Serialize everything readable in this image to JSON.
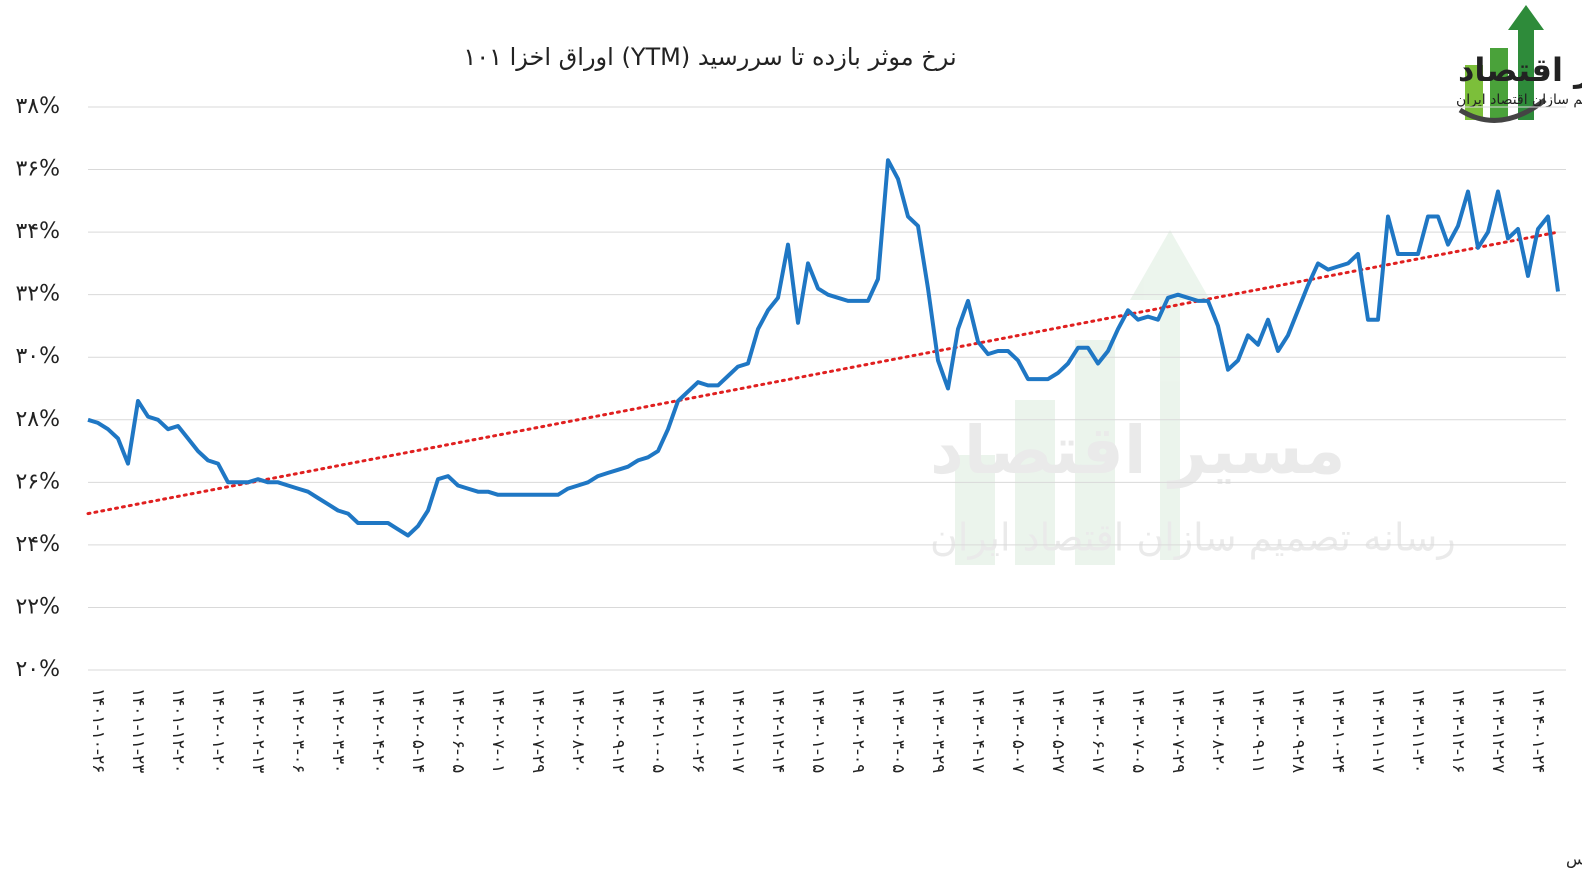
{
  "chart_data": {
    "type": "line",
    "title": "نرخ موثر بازده تا سررسید (YTM) اوراق اخزا ۱۰۱",
    "source": "ماخذ: فرابورس",
    "logo": {
      "name": "مسیر اقتصاد",
      "tagline": "رسانه تصمیم سازان اقتصاد ایران"
    },
    "categories": [
      null,
      "۱۴۰۱-۱۰-۲۶",
      null,
      null,
      null,
      "۱۴۰۱-۱۱-۲۳",
      null,
      null,
      null,
      "۱۴۰۱-۱۲-۲۰",
      null,
      null,
      null,
      "۱۴۰۲-۰۱-۲۰",
      null,
      null,
      null,
      "۱۴۰۲-۰۲-۱۳",
      null,
      null,
      null,
      "۱۴۰۲-۰۳-۰۶",
      null,
      null,
      null,
      "۱۴۰۲-۰۳-۳۰",
      null,
      null,
      null,
      "۱۴۰۲-۰۴-۲۰",
      null,
      null,
      null,
      "۱۴۰۲-۰۵-۱۴",
      null,
      null,
      null,
      "۱۴۰۲-۰۶-۰۵",
      null,
      null,
      null,
      "۱۴۰۲-۰۷-۰۱",
      null,
      null,
      null,
      "۱۴۰۲-۰۷-۲۹",
      null,
      null,
      null,
      "۱۴۰۲-۰۸-۲۰",
      null,
      null,
      null,
      "۱۴۰۲-۰۹-۱۲",
      null,
      null,
      null,
      "۱۴۰۲-۱۰-۰۵",
      null,
      null,
      null,
      "۱۴۰۲-۱۰-۲۶",
      null,
      null,
      null,
      "۱۴۰۲-۱۱-۱۷",
      null,
      null,
      null,
      "۱۴۰۲-۱۲-۱۴",
      null,
      null,
      null,
      "۱۴۰۳-۰۱-۱۵",
      null,
      null,
      null,
      "۱۴۰۳-۰۲-۰۹",
      null,
      null,
      null,
      "۱۴۰۳-۰۳-۰۵",
      null,
      null,
      null,
      "۱۴۰۳-۰۳-۲۹",
      null,
      null,
      null,
      "۱۴۰۳-۰۴-۱۷",
      null,
      null,
      null,
      "۱۴۰۳-۰۵-۰۷",
      null,
      null,
      null,
      "۱۴۰۳-۰۵-۲۷",
      null,
      null,
      null,
      "۱۴۰۳-۰۶-۱۷",
      null,
      null,
      null,
      "۱۴۰۳-۰۷-۰۵",
      null,
      null,
      null,
      "۱۴۰۳-۰۷-۲۹",
      null,
      null,
      null,
      "۱۴۰۳-۰۸-۲۰",
      null,
      null,
      null,
      "۱۴۰۳-۰۹-۱۱",
      null,
      null,
      null,
      "۱۴۰۳-۰۹-۲۸",
      null,
      null,
      null,
      "۱۴۰۳-۱۰-۲۴",
      null,
      null,
      null,
      "۱۴۰۳-۱۱-۱۷",
      null,
      null,
      null,
      "۱۴۰۳-۱۱-۳۰",
      null,
      null,
      null,
      "۱۴۰۳-۱۲-۱۶",
      null,
      null,
      null,
      "۱۴۰۳-۱۲-۲۷",
      null,
      null,
      null,
      "۱۴۰۴-۰۱-۲۴",
      null,
      null
    ],
    "series": [
      {
        "color": "#1f77c4",
        "values": [
          28.0,
          27.9,
          27.7,
          27.4,
          26.6,
          28.6,
          28.1,
          28.0,
          27.7,
          27.8,
          27.4,
          27.0,
          26.7,
          26.6,
          26.0,
          26.0,
          26.0,
          26.1,
          26.0,
          26.0,
          25.9,
          25.8,
          25.7,
          25.5,
          25.3,
          25.1,
          25.0,
          24.7,
          24.7,
          24.7,
          24.7,
          24.5,
          24.3,
          24.6,
          25.1,
          26.1,
          26.2,
          25.9,
          25.8,
          25.7,
          25.7,
          25.6,
          25.6,
          25.6,
          25.6,
          25.6,
          25.6,
          25.6,
          25.8,
          25.9,
          26.0,
          26.2,
          26.3,
          26.4,
          26.5,
          26.7,
          26.8,
          27.0,
          27.7,
          28.6,
          28.9,
          29.2,
          29.1,
          29.1,
          29.4,
          29.7,
          29.8,
          30.9,
          31.5,
          31.9,
          33.6,
          31.1,
          33.0,
          32.2,
          32.0,
          31.9,
          31.8,
          31.8,
          31.8,
          32.5,
          36.3,
          35.7,
          34.5,
          34.2,
          32.2,
          29.9,
          29.0,
          30.9,
          31.8,
          30.5,
          30.1,
          30.2,
          30.2,
          29.9,
          29.3,
          29.3,
          29.3,
          29.5,
          29.8,
          30.3,
          30.3,
          29.8,
          30.2,
          30.9,
          31.5,
          31.2,
          31.3,
          31.2,
          31.9,
          32.0,
          31.9,
          31.8,
          31.8,
          31.0,
          29.6,
          29.9,
          30.7,
          30.4,
          31.2,
          30.2,
          30.7,
          31.5,
          32.3,
          33.0,
          32.8,
          32.9,
          33.0,
          33.3,
          31.2,
          31.2,
          34.5,
          33.3,
          33.3,
          33.3,
          34.5,
          34.5,
          33.6,
          34.2,
          35.3,
          33.5,
          34.0,
          35.3,
          33.8,
          34.1,
          32.6,
          34.1,
          34.5,
          32.1
        ]
      }
    ],
    "trendline": {
      "start": 25.0,
      "end": 34.0,
      "color": "#e02020",
      "style": "dotted"
    },
    "ylim": [
      20,
      38
    ],
    "yticks": [
      {
        "value": 20,
        "label": "۲۰%"
      },
      {
        "value": 22,
        "label": "۲۲%"
      },
      {
        "value": 24,
        "label": "۲۴%"
      },
      {
        "value": 26,
        "label": "۲۶%"
      },
      {
        "value": 28,
        "label": "۲۸%"
      },
      {
        "value": 30,
        "label": "۳۰%"
      },
      {
        "value": 32,
        "label": "۳۲%"
      },
      {
        "value": 34,
        "label": "۳۴%"
      },
      {
        "value": 36,
        "label": "۳۶%"
      },
      {
        "value": 38,
        "label": "۳۸%"
      }
    ],
    "grid": true
  }
}
